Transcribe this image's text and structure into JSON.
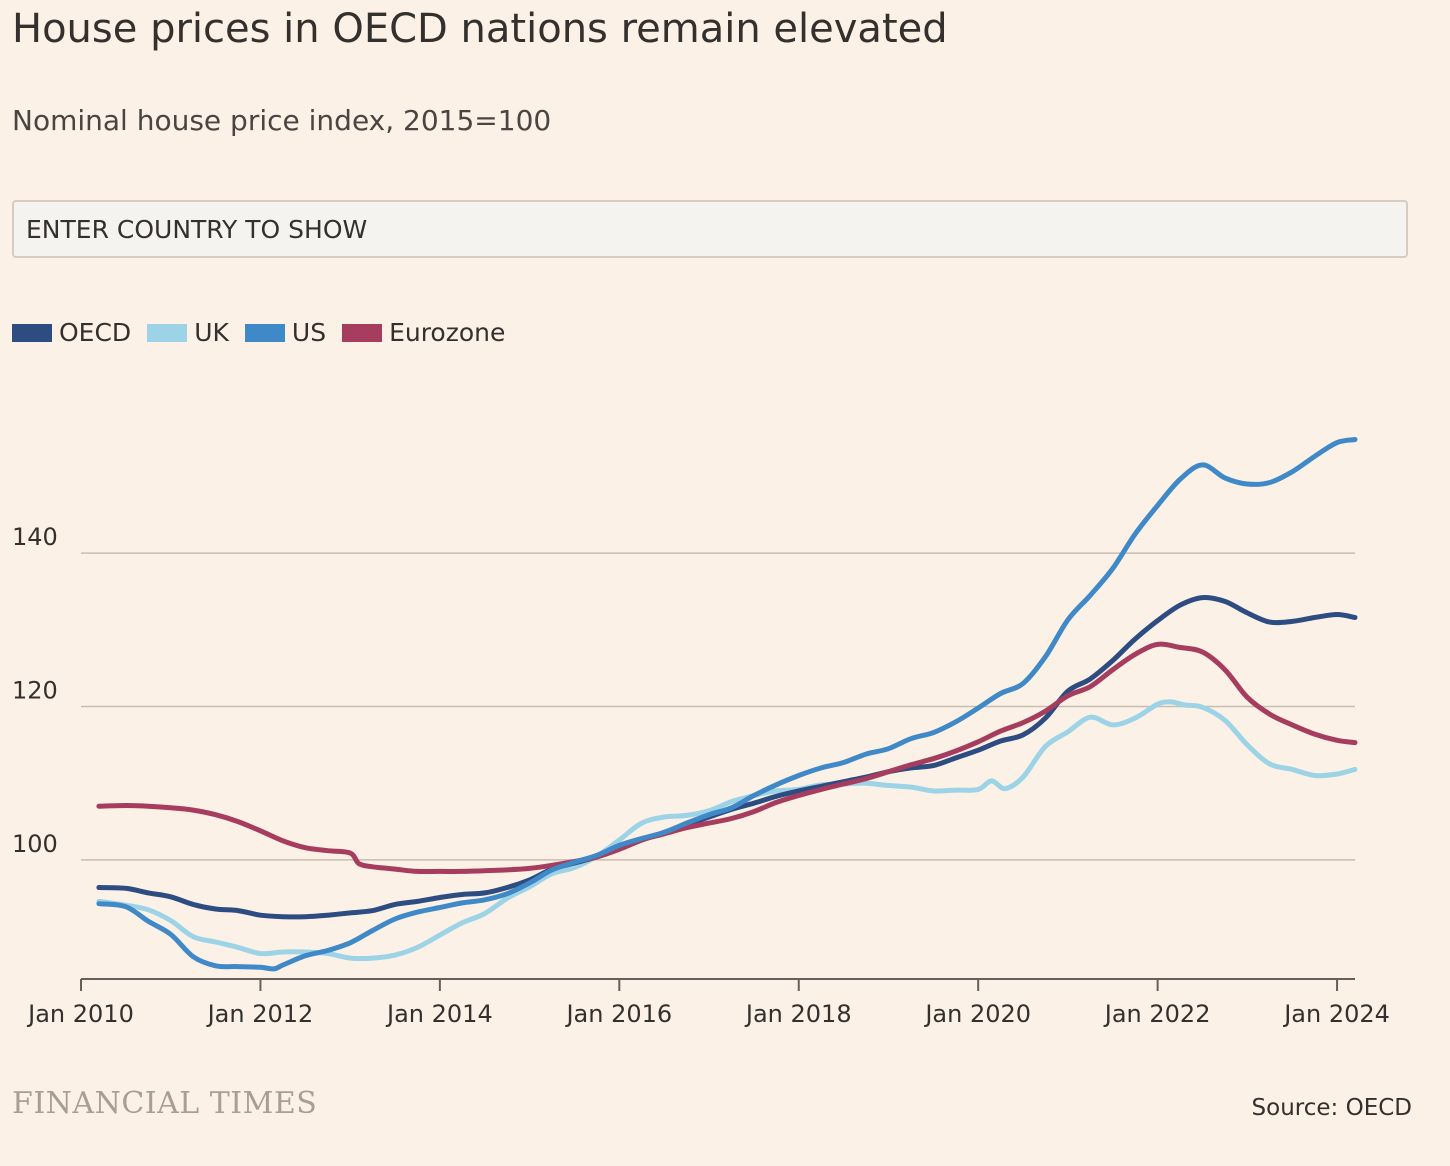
{
  "header": {
    "title": "House prices in OECD nations remain elevated",
    "subtitle": "Nominal house price index, 2015=100"
  },
  "search": {
    "placeholder": "ENTER COUNTRY TO SHOW"
  },
  "footer": {
    "logo": "FINANCIAL TIMES",
    "source": "Source: OECD"
  },
  "colors": {
    "background": "#fcf1e6",
    "gridline": "#c8bdb2",
    "axis": "#66605c"
  },
  "chart_data": {
    "type": "line",
    "title": "House prices in OECD nations remain elevated",
    "subtitle": "Nominal house price index, 2015=100",
    "xlabel": "",
    "ylabel": "",
    "xlim": [
      2010.0,
      2024.2
    ],
    "ylim": [
      85,
      158
    ],
    "grid": true,
    "legend_position": "top-left",
    "x_ticks": [
      {
        "value": 2010,
        "label": "Jan 2010"
      },
      {
        "value": 2012,
        "label": "Jan 2012"
      },
      {
        "value": 2014,
        "label": "Jan 2014"
      },
      {
        "value": 2016,
        "label": "Jan 2016"
      },
      {
        "value": 2018,
        "label": "Jan 2018"
      },
      {
        "value": 2020,
        "label": "Jan 2020"
      },
      {
        "value": 2022,
        "label": "Jan 2022"
      },
      {
        "value": 2024,
        "label": "Jan 2024"
      }
    ],
    "y_ticks": [
      100,
      120,
      140
    ],
    "series": [
      {
        "name": "OECD",
        "color": "#2d4c82",
        "x": [
          2010.2,
          2010.5,
          2010.75,
          2011,
          2011.25,
          2011.5,
          2011.75,
          2012,
          2012.25,
          2012.5,
          2012.75,
          2013,
          2013.25,
          2013.5,
          2013.75,
          2014,
          2014.25,
          2014.5,
          2014.75,
          2015,
          2015.25,
          2015.5,
          2015.75,
          2016,
          2016.25,
          2016.5,
          2016.75,
          2017,
          2017.25,
          2017.5,
          2017.75,
          2018,
          2018.25,
          2018.5,
          2018.75,
          2019,
          2019.25,
          2019.5,
          2019.75,
          2020,
          2020.25,
          2020.5,
          2020.75,
          2021,
          2021.25,
          2021.5,
          2021.75,
          2022,
          2022.25,
          2022.5,
          2022.75,
          2023,
          2023.25,
          2023.5,
          2023.75,
          2024,
          2024.2
        ],
        "y": [
          96.4,
          96.3,
          95.7,
          95.2,
          94.2,
          93.6,
          93.4,
          92.8,
          92.6,
          92.6,
          92.8,
          93.1,
          93.4,
          94.2,
          94.6,
          95.1,
          95.5,
          95.7,
          96.4,
          97.4,
          98.8,
          99.6,
          100.4,
          101.4,
          102.6,
          103.6,
          104.6,
          105.6,
          106.6,
          107.4,
          108.3,
          109.0,
          109.6,
          110.2,
          110.8,
          111.5,
          112.0,
          112.3,
          113.3,
          114.3,
          115.5,
          116.3,
          118.5,
          122.0,
          123.6,
          126.0,
          128.8,
          131.2,
          133.2,
          134.2,
          133.7,
          132.2,
          131.0,
          131.1,
          131.6,
          132.0,
          131.6
        ]
      },
      {
        "name": "UK",
        "color": "#9dd3e6",
        "x": [
          2010.2,
          2010.5,
          2010.75,
          2011,
          2011.25,
          2011.5,
          2011.75,
          2012,
          2012.25,
          2012.5,
          2012.75,
          2013,
          2013.25,
          2013.5,
          2013.75,
          2014,
          2014.25,
          2014.5,
          2014.75,
          2015,
          2015.25,
          2015.5,
          2015.75,
          2016,
          2016.25,
          2016.5,
          2016.75,
          2017,
          2017.25,
          2017.5,
          2017.75,
          2018,
          2018.25,
          2018.5,
          2018.75,
          2019,
          2019.25,
          2019.5,
          2019.75,
          2020,
          2020.15,
          2020.3,
          2020.5,
          2020.75,
          2021,
          2021.25,
          2021.5,
          2021.75,
          2022,
          2022.15,
          2022.3,
          2022.5,
          2022.75,
          2023,
          2023.25,
          2023.5,
          2023.75,
          2024,
          2024.2
        ],
        "y": [
          94.6,
          94.1,
          93.5,
          92.1,
          90.0,
          89.3,
          88.6,
          87.8,
          88.0,
          88.0,
          87.8,
          87.2,
          87.2,
          87.6,
          88.6,
          90.2,
          91.8,
          93.0,
          95.0,
          96.5,
          98.2,
          99.0,
          100.5,
          102.6,
          104.8,
          105.6,
          105.8,
          106.4,
          107.6,
          108.4,
          109.0,
          109.2,
          109.8,
          109.9,
          110.0,
          109.7,
          109.5,
          109.0,
          109.1,
          109.2,
          110.3,
          109.3,
          110.8,
          114.8,
          116.7,
          118.6,
          117.6,
          118.5,
          120.3,
          120.6,
          120.2,
          119.9,
          118.2,
          115.0,
          112.5,
          111.8,
          111.0,
          111.2,
          111.8
        ]
      },
      {
        "name": "US",
        "color": "#4089c8",
        "x": [
          2010.2,
          2010.5,
          2010.75,
          2011,
          2011.25,
          2011.5,
          2011.75,
          2012,
          2012.15,
          2012.25,
          2012.5,
          2012.75,
          2013,
          2013.25,
          2013.5,
          2013.75,
          2014,
          2014.25,
          2014.5,
          2014.75,
          2015,
          2015.25,
          2015.5,
          2015.75,
          2016,
          2016.25,
          2016.5,
          2016.75,
          2017,
          2017.25,
          2017.5,
          2017.75,
          2018,
          2018.25,
          2018.5,
          2018.75,
          2019,
          2019.25,
          2019.5,
          2019.75,
          2020,
          2020.25,
          2020.5,
          2020.75,
          2021,
          2021.25,
          2021.5,
          2021.75,
          2022,
          2022.25,
          2022.5,
          2022.75,
          2023,
          2023.25,
          2023.5,
          2023.75,
          2024,
          2024.2
        ],
        "y": [
          94.3,
          93.9,
          92.0,
          90.3,
          87.4,
          86.2,
          86.1,
          86.0,
          85.8,
          86.3,
          87.5,
          88.2,
          89.2,
          90.8,
          92.3,
          93.2,
          93.8,
          94.4,
          94.8,
          95.6,
          97.0,
          98.7,
          99.7,
          100.6,
          101.9,
          102.8,
          103.6,
          104.8,
          105.9,
          106.8,
          108.4,
          109.8,
          111.0,
          112.0,
          112.7,
          113.8,
          114.5,
          115.8,
          116.6,
          118.0,
          119.8,
          121.7,
          123.0,
          126.5,
          131.3,
          134.5,
          138.0,
          142.5,
          146.2,
          149.6,
          151.5,
          149.8,
          149.0,
          149.2,
          150.6,
          152.6,
          154.4,
          154.8
        ]
      },
      {
        "name": "Eurozone",
        "color": "#a63d5f",
        "x": [
          2010.2,
          2010.5,
          2010.75,
          2011,
          2011.25,
          2011.5,
          2011.75,
          2012,
          2012.25,
          2012.5,
          2012.75,
          2013,
          2013.1,
          2013.25,
          2013.5,
          2013.75,
          2014,
          2014.25,
          2014.5,
          2014.75,
          2015,
          2015.25,
          2015.5,
          2015.75,
          2016,
          2016.25,
          2016.5,
          2016.75,
          2017,
          2017.25,
          2017.5,
          2017.75,
          2018,
          2018.25,
          2018.5,
          2018.75,
          2019,
          2019.25,
          2019.5,
          2019.75,
          2020,
          2020.25,
          2020.5,
          2020.75,
          2021,
          2021.25,
          2021.5,
          2021.75,
          2022,
          2022.25,
          2022.5,
          2022.75,
          2023,
          2023.25,
          2023.5,
          2023.75,
          2024,
          2024.2
        ],
        "y": [
          107.0,
          107.1,
          107.0,
          106.8,
          106.5,
          105.9,
          105.0,
          103.8,
          102.5,
          101.6,
          101.2,
          100.9,
          99.5,
          99.1,
          98.8,
          98.5,
          98.5,
          98.5,
          98.6,
          98.7,
          98.9,
          99.3,
          99.8,
          100.4,
          101.4,
          102.6,
          103.4,
          104.2,
          104.8,
          105.4,
          106.3,
          107.5,
          108.4,
          109.2,
          109.9,
          110.6,
          111.5,
          112.4,
          113.2,
          114.2,
          115.4,
          116.8,
          117.9,
          119.4,
          121.4,
          122.6,
          124.8,
          126.8,
          128.1,
          127.7,
          127.1,
          124.8,
          121.2,
          119.0,
          117.6,
          116.4,
          115.6,
          115.3
        ]
      }
    ]
  }
}
